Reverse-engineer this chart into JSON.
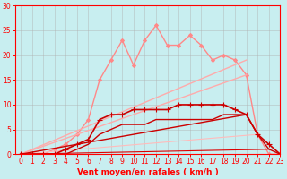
{
  "background_color": "#c8eef0",
  "grid_color": "#b0b0b0",
  "axis_color": "#ff0000",
  "xlabel": "Vent moyen/en rafales ( km/h )",
  "xlim": [
    -0.5,
    23
  ],
  "ylim": [
    0,
    30
  ],
  "yticks": [
    0,
    5,
    10,
    15,
    20,
    25,
    30
  ],
  "xticks": [
    0,
    1,
    2,
    3,
    4,
    5,
    6,
    7,
    8,
    9,
    10,
    11,
    12,
    13,
    14,
    15,
    16,
    17,
    18,
    19,
    20,
    21,
    22,
    23
  ],
  "lines": [
    {
      "x": [
        0,
        1,
        2,
        3,
        4,
        5,
        6,
        7,
        8,
        9,
        10,
        11,
        12,
        13,
        14,
        15,
        16,
        17,
        18,
        19,
        20,
        21,
        22,
        23
      ],
      "y": [
        0,
        0,
        0,
        1,
        2,
        4,
        7,
        15,
        19,
        23,
        18,
        23,
        26,
        22,
        22,
        24,
        22,
        19,
        20,
        19,
        16,
        4,
        0,
        0
      ],
      "color": "#ff8888",
      "lw": 1.0,
      "marker": "D",
      "ms": 2.0
    },
    {
      "x": [
        0,
        20
      ],
      "y": [
        0,
        19
      ],
      "color": "#ffaaaa",
      "lw": 1.0,
      "marker": null,
      "ms": 0
    },
    {
      "x": [
        0,
        20
      ],
      "y": [
        0,
        16
      ],
      "color": "#ffaaaa",
      "lw": 1.0,
      "marker": null,
      "ms": 0
    },
    {
      "x": [
        0,
        21
      ],
      "y": [
        0,
        4
      ],
      "color": "#ffbbbb",
      "lw": 0.8,
      "marker": null,
      "ms": 0
    },
    {
      "x": [
        0,
        1,
        2,
        3,
        4,
        5,
        6,
        7,
        8,
        9,
        10,
        11,
        12,
        13,
        14,
        15,
        16,
        17,
        18,
        19,
        20,
        21,
        22,
        23
      ],
      "y": [
        0,
        0,
        0,
        0,
        1,
        2,
        3,
        7,
        8,
        8,
        9,
        9,
        9,
        9,
        10,
        10,
        10,
        10,
        10,
        9,
        8,
        4,
        2,
        0
      ],
      "color": "#cc0000",
      "lw": 1.2,
      "marker": "+",
      "ms": 4.0
    },
    {
      "x": [
        0,
        1,
        2,
        3,
        4,
        5,
        6,
        7,
        8,
        9,
        10,
        11,
        12,
        13,
        14,
        15,
        16,
        17,
        18,
        19,
        20,
        21,
        22,
        23
      ],
      "y": [
        0,
        0,
        0,
        0,
        0,
        1,
        2,
        4,
        5,
        6,
        6,
        6,
        7,
        7,
        7,
        7,
        7,
        7,
        8,
        8,
        8,
        4,
        1,
        0
      ],
      "color": "#cc0000",
      "lw": 1.0,
      "marker": null,
      "ms": 0
    },
    {
      "x": [
        0,
        20
      ],
      "y": [
        0,
        8
      ],
      "color": "#cc0000",
      "lw": 1.0,
      "marker": null,
      "ms": 0
    },
    {
      "x": [
        0,
        22
      ],
      "y": [
        0,
        1
      ],
      "color": "#dd0000",
      "lw": 0.8,
      "marker": null,
      "ms": 0
    }
  ]
}
